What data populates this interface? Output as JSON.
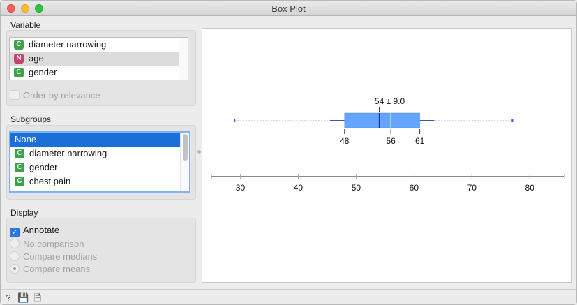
{
  "window": {
    "title": "Box Plot"
  },
  "variable_section": {
    "label": "Variable",
    "items": [
      {
        "badge": "C",
        "label": "diameter narrowing",
        "selected": false
      },
      {
        "badge": "N",
        "label": "age",
        "selected": true
      },
      {
        "badge": "C",
        "label": "gender",
        "selected": false
      }
    ],
    "order_by_relevance": {
      "label": "Order by relevance",
      "checked": false,
      "enabled": false
    }
  },
  "subgroups_section": {
    "label": "Subgroups",
    "items": [
      {
        "badge": "",
        "label": "None",
        "selected": true
      },
      {
        "badge": "C",
        "label": "diameter narrowing",
        "selected": false
      },
      {
        "badge": "C",
        "label": "gender",
        "selected": false
      },
      {
        "badge": "C",
        "label": "chest pain",
        "selected": false
      }
    ]
  },
  "display_section": {
    "label": "Display",
    "annotate": {
      "label": "Annotate",
      "checked": true
    },
    "comparison_options": [
      {
        "label": "No comparison",
        "selected": false
      },
      {
        "label": "Compare medians",
        "selected": false
      },
      {
        "label": "Compare means",
        "selected": true
      }
    ]
  },
  "chart_data": {
    "type": "boxplot",
    "variable": "age",
    "mean_label": "54 ± 9.0",
    "mean": 54,
    "sd": 9.0,
    "q1": 48,
    "median": 56,
    "q3": 61,
    "q1_label": "48",
    "median_label": "56",
    "q3_label": "61",
    "whisker_low": 45.5,
    "whisker_high": 63.5,
    "min": 29,
    "max": 77,
    "xlim": [
      25,
      86
    ],
    "ticks": [
      30,
      40,
      50,
      60,
      70,
      80
    ],
    "tick_labels": [
      "30",
      "40",
      "50",
      "60",
      "70",
      "80"
    ],
    "colors": {
      "box": "#66a5ff",
      "box_edge": "#4a8ee8",
      "mean_line": "#1c3a8a",
      "median_line": "#b5ffb0",
      "whisker": "#3557cf",
      "range": "#9aa6e8"
    }
  },
  "statusbar": {
    "icons": [
      "help-icon",
      "save-icon",
      "report-icon"
    ],
    "glyphs": [
      "?",
      "💾",
      "🗎"
    ]
  }
}
